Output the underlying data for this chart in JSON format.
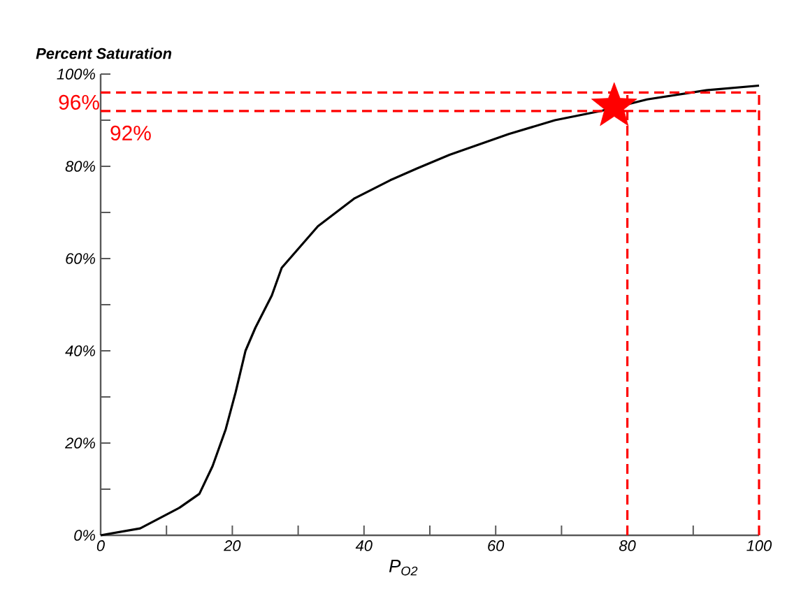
{
  "chart_data": {
    "type": "line",
    "ylabel": "Percent Saturation",
    "xlabel": "P$_{O2}$",
    "xlim": [
      0,
      100
    ],
    "ylim": [
      0,
      100
    ],
    "xticks": [
      0,
      {
        "value": 10,
        "label": null
      },
      20,
      {
        "value": 30,
        "label": null
      },
      40,
      {
        "value": 50,
        "label": null
      },
      60,
      {
        "value": 70,
        "label": null
      },
      80,
      {
        "value": 90,
        "label": null
      },
      100
    ],
    "yticks": [
      {
        "value": 0,
        "label": "0%"
      },
      {
        "value": 10,
        "label": null
      },
      {
        "value": 20,
        "label": "20%"
      },
      {
        "value": 30,
        "label": null
      },
      {
        "value": 40,
        "label": "40%"
      },
      {
        "value": 50,
        "label": null
      },
      {
        "value": 60,
        "label": "60%"
      },
      {
        "value": 70,
        "label": null
      },
      {
        "value": 80,
        "label": "80%"
      },
      {
        "value": 90,
        "label": null
      },
      {
        "value": 100,
        "label": "100%"
      }
    ],
    "grid": false,
    "series": [
      {
        "color": "#000000",
        "marker": "none",
        "line_style": "solid",
        "x": [
          0,
          6,
          12,
          15,
          17,
          19,
          20.5,
          22,
          23.5,
          26,
          27.5,
          33,
          38.5,
          44,
          48,
          53,
          62,
          69,
          76,
          83,
          92,
          100
        ],
        "values": [
          0,
          1.5,
          6,
          9,
          15,
          23,
          31,
          40,
          45,
          52,
          58,
          67,
          73,
          77,
          79.5,
          82.5,
          87,
          90,
          92,
          94.5,
          96.5,
          97.5
        ]
      },
      {
        "type": "scatter",
        "color": "#ff0000",
        "marker": "star",
        "x": [
          78
        ],
        "values": [
          93
        ]
      }
    ],
    "ref_lines": [
      {
        "axis": "y",
        "value": 96,
        "label": "96%",
        "color": "#ff0000",
        "line_style": "dashed"
      },
      {
        "axis": "y",
        "value": 92,
        "label": "92%",
        "color": "#ff0000",
        "line_style": "dashed"
      },
      {
        "axis": "x",
        "value": 80,
        "color": "#ff0000",
        "line_style": "dashed"
      },
      {
        "axis": "x",
        "value": 100,
        "color": "#ff0000",
        "line_style": "dashed"
      }
    ]
  }
}
